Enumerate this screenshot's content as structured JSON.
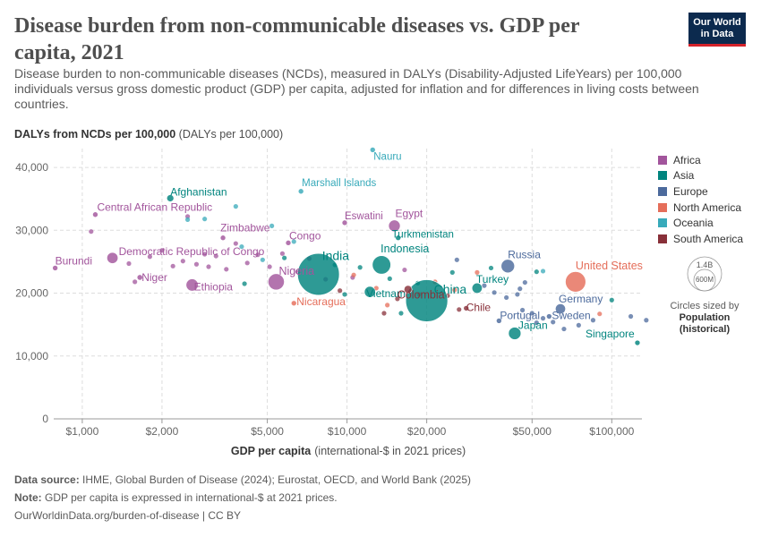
{
  "header": {
    "title": "Disease burden from non-communicable diseases vs. GDP per capita, 2021",
    "subtitle": "Disease burden to non-communicable diseases (NCDs), measured in DALYs (Disability-Adjusted LifeYears) per 100,000 individuals versus gross domestic product (GDP) per capita, adjusted for inflation and for differences in living costs between countries.",
    "logo_line1": "Our World",
    "logo_line2": "in Data"
  },
  "axis": {
    "y_title_bold": "DALYs from NCDs per 100,000",
    "y_title_unit": "(DALYs per 100,000)",
    "x_title_bold": "GDP per capita",
    "x_title_unit": "(international-$ in 2021 prices)"
  },
  "legend": {
    "items": [
      {
        "label": "Africa",
        "color": "#a2559c"
      },
      {
        "label": "Asia",
        "color": "#00847e"
      },
      {
        "label": "Europe",
        "color": "#4c6a9c"
      },
      {
        "label": "North America",
        "color": "#e56e5a"
      },
      {
        "label": "Oceania",
        "color": "#38aaba"
      },
      {
        "label": "South America",
        "color": "#883039"
      }
    ],
    "size_big": "1.4B",
    "size_small": "600M",
    "size_caption": "Circles sized by",
    "size_caption_b1": "Population",
    "size_caption_b2": "(historical)"
  },
  "footer": {
    "source_label": "Data source:",
    "source": "IHME, Global Burden of Disease (2024); Eurostat, OECD, and World Bank (2025)",
    "note_label": "Note:",
    "note": "GDP per capita is expressed in international-$ at 2021 prices.",
    "url": "OurWorldinData.org/burden-of-disease | CC BY"
  },
  "chart_data": {
    "type": "scatter",
    "x_scale": "log",
    "xlim": [
      780,
      130000
    ],
    "ylim": [
      0,
      43000
    ],
    "x_ticks": [
      {
        "v": 1000,
        "label": "$1,000"
      },
      {
        "v": 2000,
        "label": "$2,000"
      },
      {
        "v": 5000,
        "label": "$5,000"
      },
      {
        "v": 10000,
        "label": "$10,000"
      },
      {
        "v": 20000,
        "label": "$20,000"
      },
      {
        "v": 50000,
        "label": "$50,000"
      },
      {
        "v": 100000,
        "label": "$100,000"
      }
    ],
    "y_ticks": [
      {
        "v": 0,
        "label": "0"
      },
      {
        "v": 10000,
        "label": "10,000"
      },
      {
        "v": 20000,
        "label": "20,000"
      },
      {
        "v": 30000,
        "label": "30,000"
      },
      {
        "v": 40000,
        "label": "40,000"
      }
    ],
    "grid": true,
    "legend_position": "right",
    "labeled_points": [
      {
        "name": "Nauru",
        "x": 12500,
        "y": 42800,
        "region": "Oceania",
        "pop": 0.012
      },
      {
        "name": "Afghanistan",
        "x": 2150,
        "y": 35100,
        "region": "Asia",
        "pop": 40
      },
      {
        "name": "Marshall Islands",
        "x": 6700,
        "y": 36200,
        "region": "Oceania",
        "pop": 0.04
      },
      {
        "name": "Central African Republic",
        "x": 1120,
        "y": 32500,
        "region": "Africa",
        "pop": 5.5
      },
      {
        "name": "Eswatini",
        "x": 9800,
        "y": 31200,
        "region": "Africa",
        "pop": 1.2
      },
      {
        "name": "Egypt",
        "x": 15100,
        "y": 30700,
        "region": "Africa",
        "pop": 110
      },
      {
        "name": "Zimbabwe",
        "x": 3400,
        "y": 28800,
        "region": "Africa",
        "pop": 16
      },
      {
        "name": "Turkmenistan",
        "x": 15600,
        "y": 28800,
        "region": "Asia",
        "pop": 6.3
      },
      {
        "name": "Congo",
        "x": 6000,
        "y": 28000,
        "region": "Africa",
        "pop": 5.8
      },
      {
        "name": "Democratic Republic of Congo",
        "x": 1300,
        "y": 25600,
        "region": "Africa",
        "pop": 99
      },
      {
        "name": "Burundi",
        "x": 790,
        "y": 24000,
        "region": "Africa",
        "pop": 12.5
      },
      {
        "name": "India",
        "x": 7800,
        "y": 23000,
        "region": "Asia",
        "pop": 1410
      },
      {
        "name": "Indonesia",
        "x": 13500,
        "y": 24500,
        "region": "Asia",
        "pop": 274
      },
      {
        "name": "Russia",
        "x": 40500,
        "y": 24300,
        "region": "Europe",
        "pop": 145
      },
      {
        "name": "United States",
        "x": 73000,
        "y": 21800,
        "region": "North America",
        "pop": 337
      },
      {
        "name": "Niger",
        "x": 1650,
        "y": 22500,
        "region": "Africa",
        "pop": 25
      },
      {
        "name": "Ethiopia",
        "x": 2600,
        "y": 21300,
        "region": "Africa",
        "pop": 120
      },
      {
        "name": "Nigeria",
        "x": 5400,
        "y": 21800,
        "region": "Africa",
        "pop": 214
      },
      {
        "name": "Turkey",
        "x": 31000,
        "y": 20800,
        "region": "Asia",
        "pop": 85
      },
      {
        "name": "Nicaragua",
        "x": 6300,
        "y": 18400,
        "region": "North America",
        "pop": 6.8
      },
      {
        "name": "Vietnam",
        "x": 12200,
        "y": 20200,
        "region": "Asia",
        "pop": 98
      },
      {
        "name": "China",
        "x": 20000,
        "y": 18800,
        "region": "Asia",
        "pop": 1425
      },
      {
        "name": "Colombia",
        "x": 17000,
        "y": 20600,
        "region": "South America",
        "pop": 51
      },
      {
        "name": "Chile",
        "x": 28200,
        "y": 17600,
        "region": "South America",
        "pop": 19.5
      },
      {
        "name": "Portugal",
        "x": 37500,
        "y": 15600,
        "region": "Europe",
        "pop": 10.3
      },
      {
        "name": "Germany",
        "x": 64000,
        "y": 17500,
        "region": "Europe",
        "pop": 83
      },
      {
        "name": "Sweden",
        "x": 58000,
        "y": 16300,
        "region": "Europe",
        "pop": 10.5
      },
      {
        "name": "Japan",
        "x": 43000,
        "y": 13600,
        "region": "Asia",
        "pop": 125
      },
      {
        "name": "Singapore",
        "x": 125000,
        "y": 12100,
        "region": "Asia",
        "pop": 5.9
      }
    ],
    "other_points": [
      {
        "x": 1080,
        "y": 29800,
        "region": "Africa"
      },
      {
        "x": 1500,
        "y": 24700,
        "region": "Africa"
      },
      {
        "x": 1580,
        "y": 21800,
        "region": "Africa"
      },
      {
        "x": 1800,
        "y": 25800,
        "region": "Africa"
      },
      {
        "x": 2000,
        "y": 26800,
        "region": "Africa"
      },
      {
        "x": 2200,
        "y": 24300,
        "region": "Africa"
      },
      {
        "x": 2400,
        "y": 25100,
        "region": "Africa"
      },
      {
        "x": 2500,
        "y": 32200,
        "region": "Africa"
      },
      {
        "x": 2700,
        "y": 24600,
        "region": "Africa"
      },
      {
        "x": 2900,
        "y": 26200,
        "region": "Africa"
      },
      {
        "x": 3000,
        "y": 24200,
        "region": "Africa"
      },
      {
        "x": 3200,
        "y": 25900,
        "region": "Africa"
      },
      {
        "x": 3500,
        "y": 23800,
        "region": "Africa"
      },
      {
        "x": 3800,
        "y": 27900,
        "region": "Africa"
      },
      {
        "x": 4200,
        "y": 24800,
        "region": "Africa"
      },
      {
        "x": 4600,
        "y": 26100,
        "region": "Africa"
      },
      {
        "x": 5100,
        "y": 24200,
        "region": "Africa"
      },
      {
        "x": 5700,
        "y": 26300,
        "region": "Africa"
      },
      {
        "x": 6500,
        "y": 23400,
        "region": "Africa"
      },
      {
        "x": 7200,
        "y": 25500,
        "region": "Africa"
      },
      {
        "x": 8300,
        "y": 22200,
        "region": "Africa"
      },
      {
        "x": 10500,
        "y": 22500,
        "region": "Africa"
      },
      {
        "x": 16500,
        "y": 23700,
        "region": "Africa"
      },
      {
        "x": 2900,
        "y": 31800,
        "region": "Oceania"
      },
      {
        "x": 3800,
        "y": 33800,
        "region": "Oceania"
      },
      {
        "x": 2500,
        "y": 31700,
        "region": "Oceania"
      },
      {
        "x": 5200,
        "y": 30700,
        "region": "Oceania"
      },
      {
        "x": 4000,
        "y": 27400,
        "region": "Oceania"
      },
      {
        "x": 6300,
        "y": 28200,
        "region": "Oceania"
      },
      {
        "x": 4800,
        "y": 25300,
        "region": "Oceania"
      },
      {
        "x": 55000,
        "y": 23500,
        "region": "Oceania"
      },
      {
        "x": 4100,
        "y": 21500,
        "region": "Asia"
      },
      {
        "x": 5800,
        "y": 25600,
        "region": "Asia"
      },
      {
        "x": 9000,
        "y": 24500,
        "region": "Asia"
      },
      {
        "x": 11200,
        "y": 24100,
        "region": "Asia"
      },
      {
        "x": 14500,
        "y": 22300,
        "region": "Asia"
      },
      {
        "x": 18500,
        "y": 21600,
        "region": "Asia"
      },
      {
        "x": 25000,
        "y": 23300,
        "region": "Asia"
      },
      {
        "x": 35000,
        "y": 24000,
        "region": "Asia"
      },
      {
        "x": 52000,
        "y": 23400,
        "region": "Asia"
      },
      {
        "x": 100000,
        "y": 18900,
        "region": "Asia"
      },
      {
        "x": 9800,
        "y": 19800,
        "region": "Asia"
      },
      {
        "x": 16000,
        "y": 16800,
        "region": "Asia"
      },
      {
        "x": 12900,
        "y": 20800,
        "region": "North America"
      },
      {
        "x": 14200,
        "y": 18100,
        "region": "North America"
      },
      {
        "x": 18700,
        "y": 19800,
        "region": "North America"
      },
      {
        "x": 21500,
        "y": 21800,
        "region": "North America"
      },
      {
        "x": 25500,
        "y": 20500,
        "region": "North America"
      },
      {
        "x": 31000,
        "y": 23300,
        "region": "North America"
      },
      {
        "x": 10600,
        "y": 22900,
        "region": "North America"
      },
      {
        "x": 90000,
        "y": 16700,
        "region": "North America"
      },
      {
        "x": 9400,
        "y": 20400,
        "region": "South America"
      },
      {
        "x": 13800,
        "y": 16800,
        "region": "South America"
      },
      {
        "x": 15500,
        "y": 19100,
        "region": "South America"
      },
      {
        "x": 24000,
        "y": 19600,
        "region": "South America"
      },
      {
        "x": 26500,
        "y": 17400,
        "region": "South America"
      },
      {
        "x": 26000,
        "y": 25300,
        "region": "Europe"
      },
      {
        "x": 33000,
        "y": 21200,
        "region": "Europe"
      },
      {
        "x": 36000,
        "y": 20100,
        "region": "Europe"
      },
      {
        "x": 40000,
        "y": 19300,
        "region": "Europe"
      },
      {
        "x": 44000,
        "y": 19800,
        "region": "Europe"
      },
      {
        "x": 46000,
        "y": 17300,
        "region": "Europe"
      },
      {
        "x": 50000,
        "y": 16800,
        "region": "Europe"
      },
      {
        "x": 52000,
        "y": 15300,
        "region": "Europe"
      },
      {
        "x": 55000,
        "y": 16000,
        "region": "Europe"
      },
      {
        "x": 60000,
        "y": 15400,
        "region": "Europe"
      },
      {
        "x": 66000,
        "y": 14300,
        "region": "Europe"
      },
      {
        "x": 75000,
        "y": 14900,
        "region": "Europe"
      },
      {
        "x": 85000,
        "y": 15700,
        "region": "Europe"
      },
      {
        "x": 118000,
        "y": 16300,
        "region": "Europe"
      },
      {
        "x": 135000,
        "y": 15700,
        "region": "Europe"
      },
      {
        "x": 45000,
        "y": 20700,
        "region": "Europe"
      },
      {
        "x": 47000,
        "y": 21700,
        "region": "Europe"
      }
    ]
  }
}
